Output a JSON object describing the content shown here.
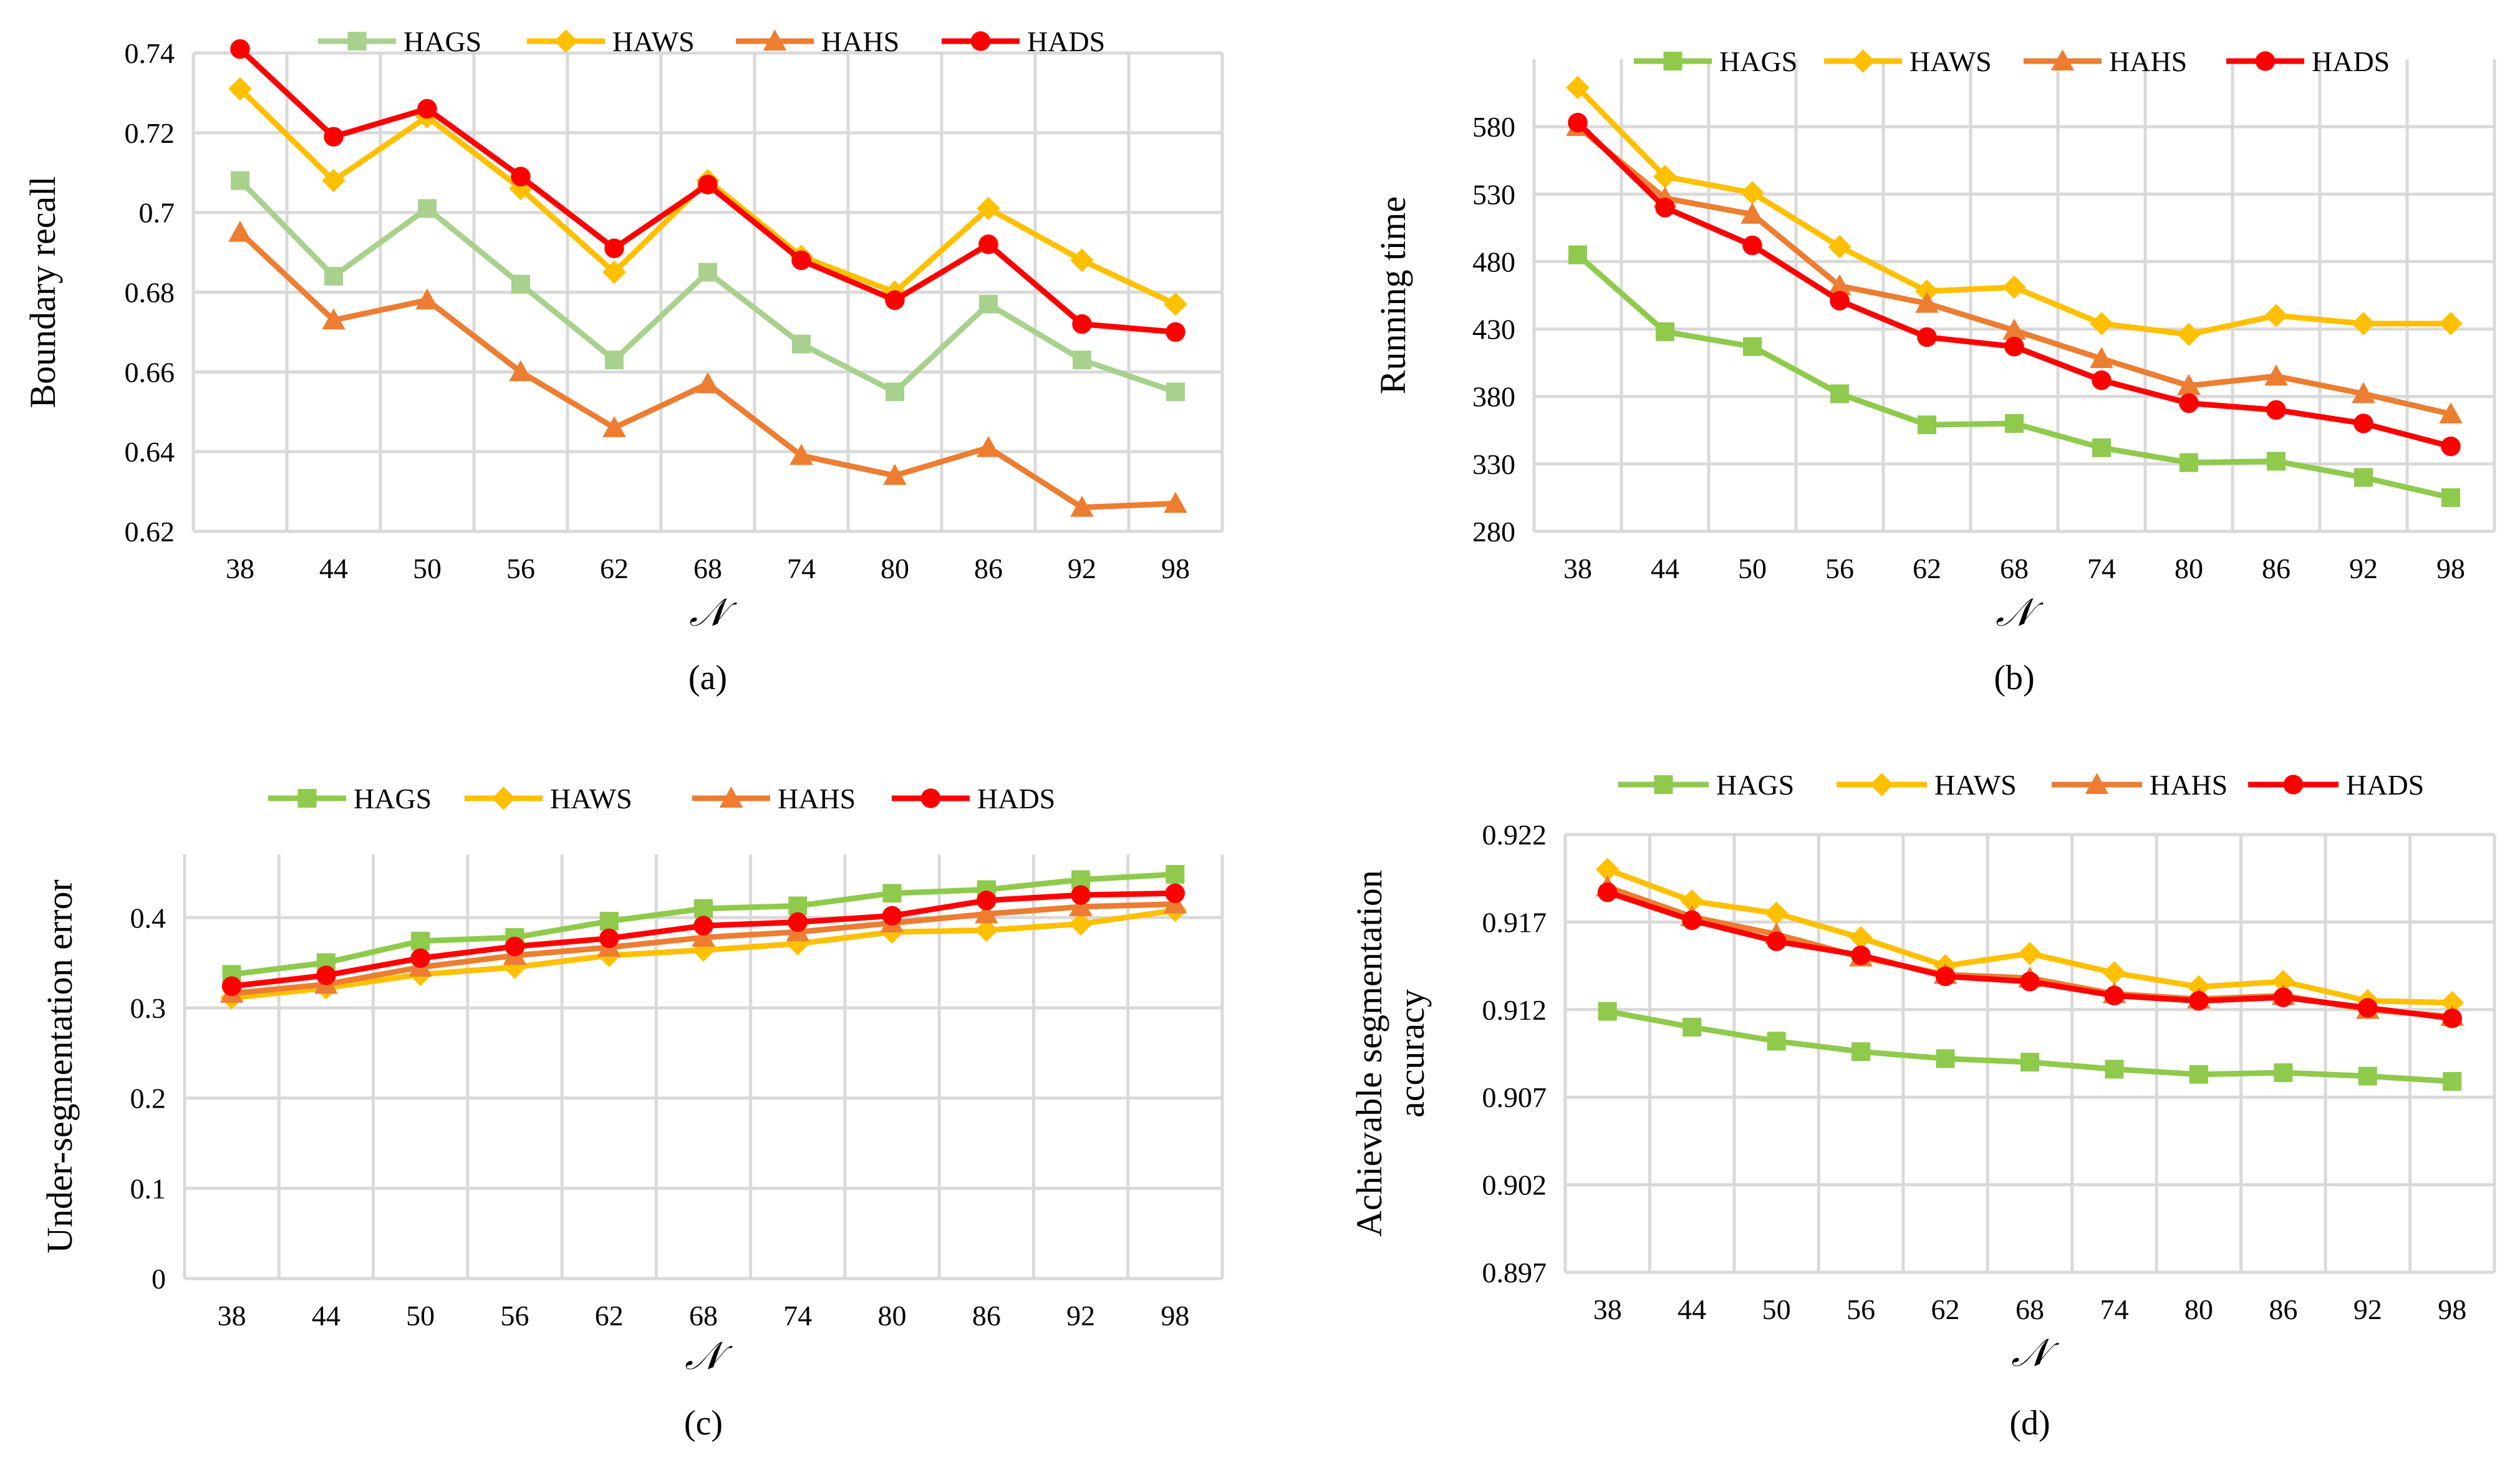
{
  "legend": [
    "HAGS",
    "HAWS",
    "HAHS",
    "HADS"
  ],
  "colors": {
    "HAGS": "#8fca4c",
    "HAWS": "#ffc000",
    "HAHS": "#ed7d31",
    "HADS": "#ff0000"
  },
  "chart_data": [
    {
      "type": "line",
      "caption": "(a)",
      "xlabel": "𝒩",
      "ylabel": "Boundary recall",
      "categories": [
        "38",
        "44",
        "50",
        "56",
        "62",
        "68",
        "74",
        "80",
        "86",
        "92",
        "98"
      ],
      "ylim": [
        0.62,
        0.74
      ],
      "yticks": [
        "0.62",
        "0.64",
        "0.66",
        "0.68",
        "0.7",
        "0.72",
        "0.74"
      ],
      "series": [
        {
          "name": "HAGS",
          "color": "#a9d18e",
          "marker": "square",
          "values": [
            0.708,
            0.684,
            0.701,
            0.682,
            0.663,
            0.685,
            0.667,
            0.655,
            0.677,
            0.663,
            0.655
          ]
        },
        {
          "name": "HAWS",
          "color": "#ffc000",
          "marker": "diamond",
          "values": [
            0.731,
            0.708,
            0.724,
            0.706,
            0.685,
            0.708,
            0.689,
            0.68,
            0.701,
            0.688,
            0.677
          ]
        },
        {
          "name": "HAHS",
          "color": "#ed7d31",
          "marker": "triangle",
          "values": [
            0.695,
            0.673,
            0.678,
            0.66,
            0.646,
            0.657,
            0.639,
            0.634,
            0.641,
            0.626,
            0.627
          ]
        },
        {
          "name": "HADS",
          "color": "#ff0000",
          "marker": "circle",
          "values": [
            0.741,
            0.719,
            0.726,
            0.709,
            0.691,
            0.707,
            0.688,
            0.678,
            0.692,
            0.672,
            0.67
          ]
        }
      ]
    },
    {
      "type": "line",
      "caption": "(b)",
      "xlabel": "𝒩",
      "ylabel": "Running time",
      "categories": [
        "38",
        "44",
        "50",
        "56",
        "62",
        "68",
        "74",
        "80",
        "86",
        "92",
        "98"
      ],
      "ylim": [
        280,
        630
      ],
      "yticks": [
        "280",
        "330",
        "380",
        "430",
        "480",
        "530",
        "580"
      ],
      "series": [
        {
          "name": "HAGS",
          "color": "#8fca4c",
          "marker": "square",
          "values": [
            485,
            428,
            417,
            382,
            359,
            360,
            342,
            331,
            332,
            320,
            305
          ]
        },
        {
          "name": "HAWS",
          "color": "#ffc000",
          "marker": "diamond",
          "values": [
            609,
            543,
            531,
            491,
            458,
            461,
            434,
            426,
            440,
            434,
            434
          ]
        },
        {
          "name": "HAHS",
          "color": "#ed7d31",
          "marker": "triangle",
          "values": [
            580,
            527,
            515,
            462,
            449,
            429,
            408,
            388,
            395,
            382,
            367
          ]
        },
        {
          "name": "HADS",
          "color": "#ff0000",
          "marker": "circle",
          "values": [
            583,
            520,
            492,
            451,
            424,
            417,
            392,
            375,
            370,
            360,
            343
          ]
        }
      ]
    },
    {
      "type": "line",
      "caption": "(c)",
      "xlabel": "𝒩",
      "ylabel": "Under-segmentation error",
      "categories": [
        "38",
        "44",
        "50",
        "56",
        "62",
        "68",
        "74",
        "80",
        "86",
        "92",
        "98"
      ],
      "ylim": [
        0,
        0.47
      ],
      "yticks": [
        "0",
        "0.1",
        "0.2",
        "0.3",
        "0.4"
      ],
      "series": [
        {
          "name": "HAGS",
          "color": "#8fca4c",
          "marker": "square",
          "values": [
            0.337,
            0.35,
            0.374,
            0.378,
            0.396,
            0.41,
            0.413,
            0.427,
            0.431,
            0.442,
            0.448
          ]
        },
        {
          "name": "HAWS",
          "color": "#ffc000",
          "marker": "diamond",
          "values": [
            0.311,
            0.322,
            0.337,
            0.345,
            0.358,
            0.364,
            0.371,
            0.384,
            0.386,
            0.393,
            0.408
          ]
        },
        {
          "name": "HAHS",
          "color": "#ed7d31",
          "marker": "triangle",
          "values": [
            0.316,
            0.326,
            0.345,
            0.358,
            0.367,
            0.378,
            0.384,
            0.394,
            0.404,
            0.412,
            0.415
          ]
        },
        {
          "name": "HADS",
          "color": "#ff0000",
          "marker": "circle",
          "values": [
            0.324,
            0.336,
            0.355,
            0.368,
            0.377,
            0.391,
            0.395,
            0.402,
            0.419,
            0.425,
            0.427
          ]
        }
      ]
    },
    {
      "type": "line",
      "caption": "(d)",
      "xlabel": "𝒩",
      "ylabel": "Achievable segmentation accuracy",
      "categories": [
        "38",
        "44",
        "50",
        "56",
        "62",
        "68",
        "74",
        "80",
        "86",
        "92",
        "98"
      ],
      "ylim": [
        0.897,
        0.922
      ],
      "yticks": [
        "0.897",
        "0.902",
        "0.907",
        "0.912",
        "0.917",
        "0.922"
      ],
      "series": [
        {
          "name": "HAGS",
          "color": "#8fca4c",
          "marker": "square",
          "values": [
            0.9119,
            0.911,
            0.9102,
            0.9096,
            0.9092,
            0.909,
            0.9086,
            0.9083,
            0.9084,
            0.9082,
            0.9079
          ]
        },
        {
          "name": "HAWS",
          "color": "#ffc000",
          "marker": "diamond",
          "values": [
            0.92,
            0.9182,
            0.9175,
            0.9161,
            0.9145,
            0.9152,
            0.9141,
            0.9133,
            0.9136,
            0.9125,
            0.9124
          ]
        },
        {
          "name": "HAHS",
          "color": "#ed7d31",
          "marker": "triangle",
          "values": [
            0.919,
            0.9173,
            0.9163,
            0.915,
            0.914,
            0.9138,
            0.9129,
            0.9126,
            0.9128,
            0.912,
            0.9116
          ]
        },
        {
          "name": "HADS",
          "color": "#ff0000",
          "marker": "circle",
          "values": [
            0.9187,
            0.9171,
            0.9159,
            0.9151,
            0.9139,
            0.9136,
            0.9128,
            0.9125,
            0.9127,
            0.9121,
            0.9115
          ]
        }
      ]
    }
  ]
}
